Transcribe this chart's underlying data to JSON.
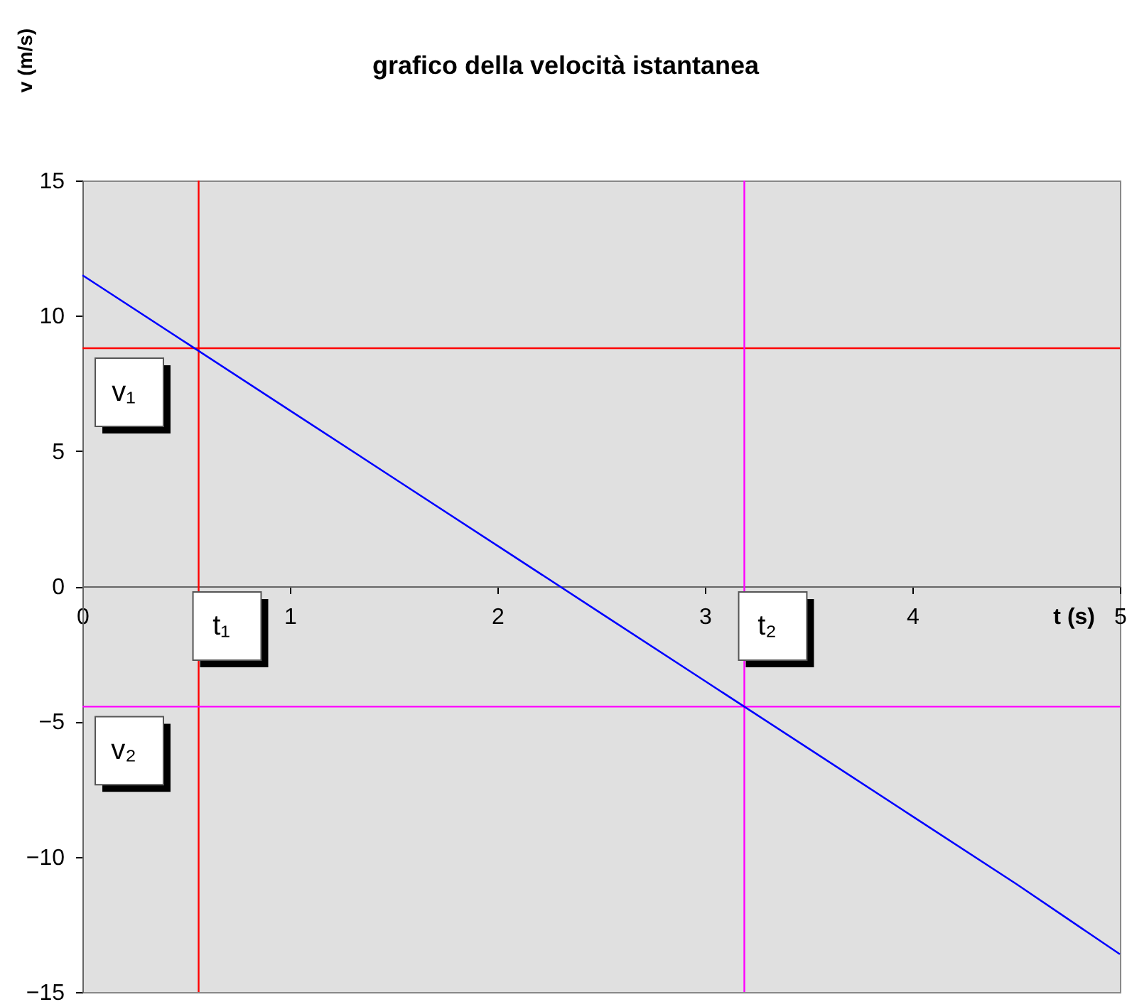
{
  "chart_data": {
    "type": "line",
    "title": "grafico della velocità istantanea",
    "xlabel": "t (s)",
    "ylabel": "v (m/s)",
    "x": [
      0,
      0.5,
      1,
      1.5,
      2,
      2.5,
      3,
      3.5,
      4,
      4.5,
      5
    ],
    "series": [
      {
        "color": "#0000ff",
        "values": [
          11.5,
          9,
          6.5,
          4,
          1.5,
          -1,
          -3.5,
          -6,
          -8.5,
          -11,
          -13.6
        ]
      }
    ],
    "xlim": [
      0,
      5
    ],
    "xticks": [
      0,
      1,
      2,
      3,
      4,
      5
    ],
    "ylim": [
      -15,
      15
    ],
    "yticks": [
      -15,
      -10,
      -5,
      0,
      5,
      10,
      15
    ],
    "grid": false,
    "marker": "none",
    "line_style": "solid",
    "ref_lines": [
      {
        "axis": "x",
        "value": 0.56,
        "label": "t₁",
        "color": "#ff0000"
      },
      {
        "axis": "y",
        "value": 8.8,
        "label": "v₁",
        "color": "#ff0000"
      },
      {
        "axis": "x",
        "value": 3.19,
        "label": "t₂",
        "color": "#ff00ff"
      },
      {
        "axis": "y",
        "value": -4.45,
        "label": "v₂",
        "color": "#ff00ff"
      }
    ]
  }
}
